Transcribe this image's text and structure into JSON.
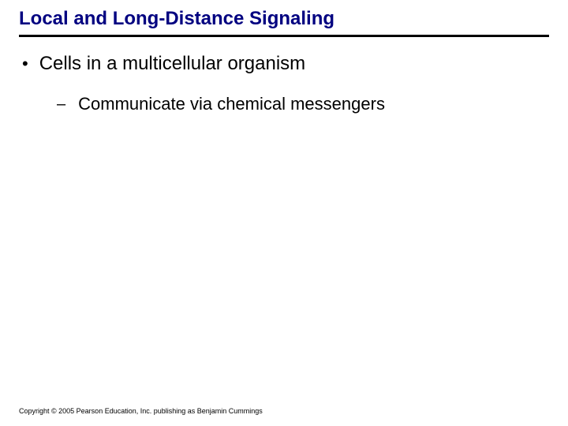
{
  "slide": {
    "title": "Local and Long-Distance Signaling",
    "title_color": "#000080",
    "title_fontsize": 24,
    "title_underline_color": "#000000",
    "title_underline_width": 3,
    "background_color": "#ffffff",
    "bullets": [
      {
        "level": 1,
        "marker": "•",
        "text": "Cells in a multicellular organism",
        "fontsize": 24,
        "color": "#000000"
      },
      {
        "level": 2,
        "marker": "–",
        "text": "Communicate via chemical messengers",
        "fontsize": 22,
        "color": "#000000"
      }
    ],
    "footer": "Copyright © 2005 Pearson Education, Inc. publishing as Benjamin Cummings",
    "footer_fontsize": 9,
    "footer_color": "#000000"
  }
}
